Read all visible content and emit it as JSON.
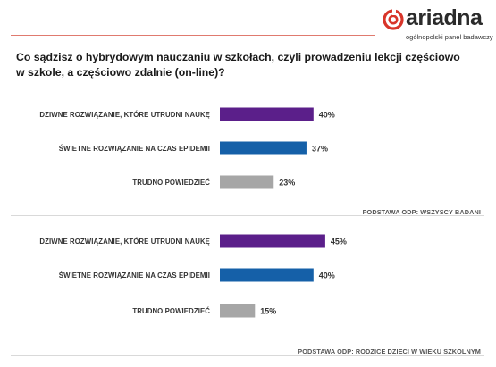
{
  "brand": {
    "name": "ariadna",
    "tagline": "ogólnopolski panel badawczy",
    "colors": {
      "accent": "#d8352a",
      "text": "#2b2b2b"
    }
  },
  "question": "Co sądzisz o hybrydowym nauczaniu w szkołach, czyli prowadzeniu lekcji częściowo w szkole, a częściowo zdalnie (on-line)?",
  "chart_data": [
    {
      "type": "bar",
      "orientation": "horizontal",
      "categories": [
        "DZIWNE ROZWIĄZANIE, KTÓRE UTRUDNI NAUKĘ",
        "ŚWIETNE ROZWIĄZANIE NA CZAS EPIDEMII",
        "TRUDNO POWIEDZIEĆ"
      ],
      "values": [
        40,
        37,
        23
      ],
      "value_labels": [
        "40%",
        "37%",
        "23%"
      ],
      "unit": "%",
      "colors": [
        "#5b1f8a",
        "#1560a8",
        "#a6a6a6"
      ],
      "base_note": "PODSTAWA ODP: WSZYSCY BADANI",
      "xlim": [
        0,
        100
      ],
      "grid": false,
      "legend": "none"
    },
    {
      "type": "bar",
      "orientation": "horizontal",
      "categories": [
        "DZIWNE ROZWIĄZANIE, KTÓRE UTRUDNI NAUKĘ",
        "ŚWIETNE ROZWIĄZANIE NA CZAS EPIDEMII",
        "TRUDNO POWIEDZIEĆ"
      ],
      "values": [
        45,
        40,
        15
      ],
      "value_labels": [
        "45%",
        "40%",
        "15%"
      ],
      "unit": "%",
      "colors": [
        "#5b1f8a",
        "#1560a8",
        "#a6a6a6"
      ],
      "base_note": "PODSTAWA ODP: RODZICE DZIECI W WIEKU SZKOLNYM",
      "xlim": [
        0,
        100
      ],
      "grid": false,
      "legend": "none"
    }
  ]
}
